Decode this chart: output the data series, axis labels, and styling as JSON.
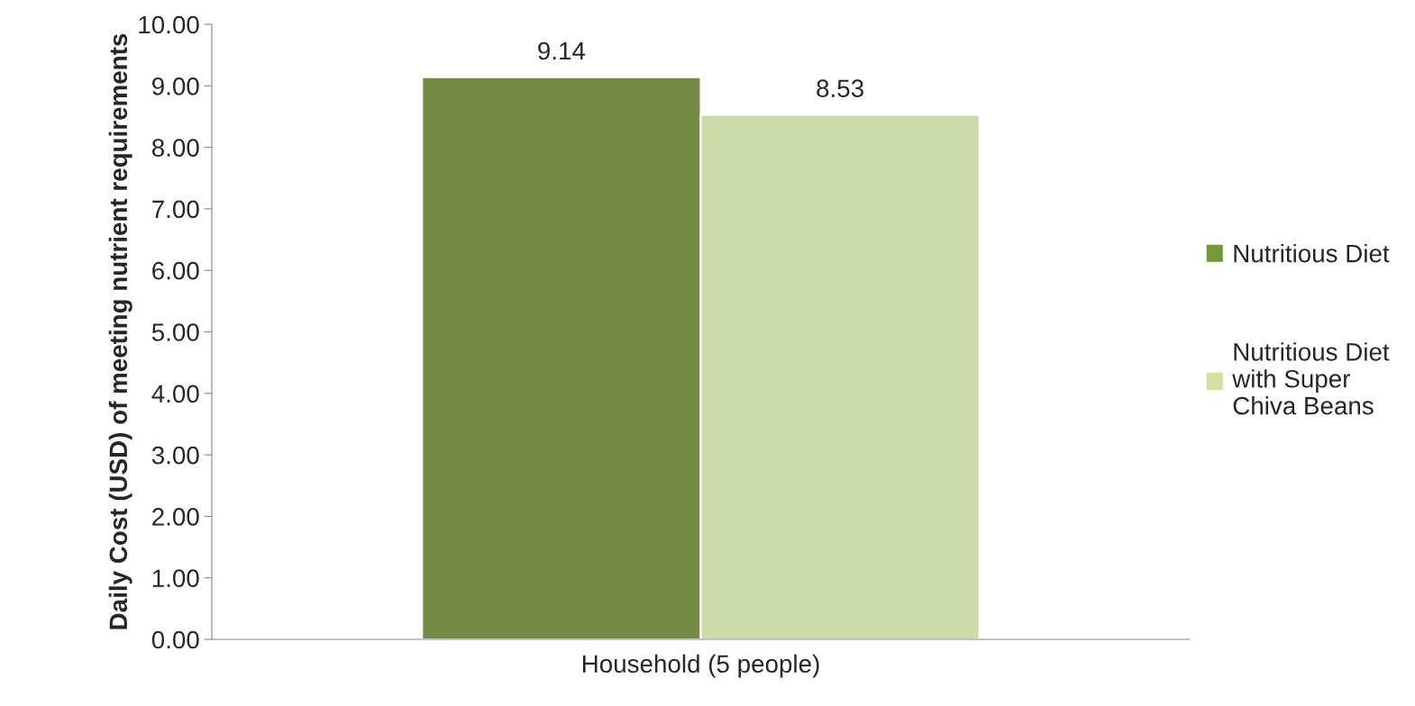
{
  "chart_data": {
    "type": "bar",
    "ylabel": "Daily Cost (USD) of meeting nutrient requirements",
    "categories": [
      "Household (5 people)"
    ],
    "series": [
      {
        "name": "Nutritious Diet",
        "color": "#77983a",
        "values": [
          9.14
        ]
      },
      {
        "name": "Nutritious Diet with Super Chiva Beans",
        "color": "#d1e3a3",
        "values": [
          8.53
        ]
      }
    ],
    "ylim": [
      0,
      10
    ],
    "yticks": [
      {
        "value": 0,
        "label": "0.00"
      },
      {
        "value": 1,
        "label": "1.00"
      },
      {
        "value": 2,
        "label": "2.00"
      },
      {
        "value": 3,
        "label": "3.00"
      },
      {
        "value": 4,
        "label": "4.00"
      },
      {
        "value": 5,
        "label": "5.00"
      },
      {
        "value": 6,
        "label": "6.00"
      },
      {
        "value": 7,
        "label": "7.00"
      },
      {
        "value": 8,
        "label": "8.00"
      },
      {
        "value": 9,
        "label": "9.00"
      },
      {
        "value": 10,
        "label": "10.00"
      }
    ],
    "data_labels": true,
    "grid": false,
    "legend": "right"
  }
}
